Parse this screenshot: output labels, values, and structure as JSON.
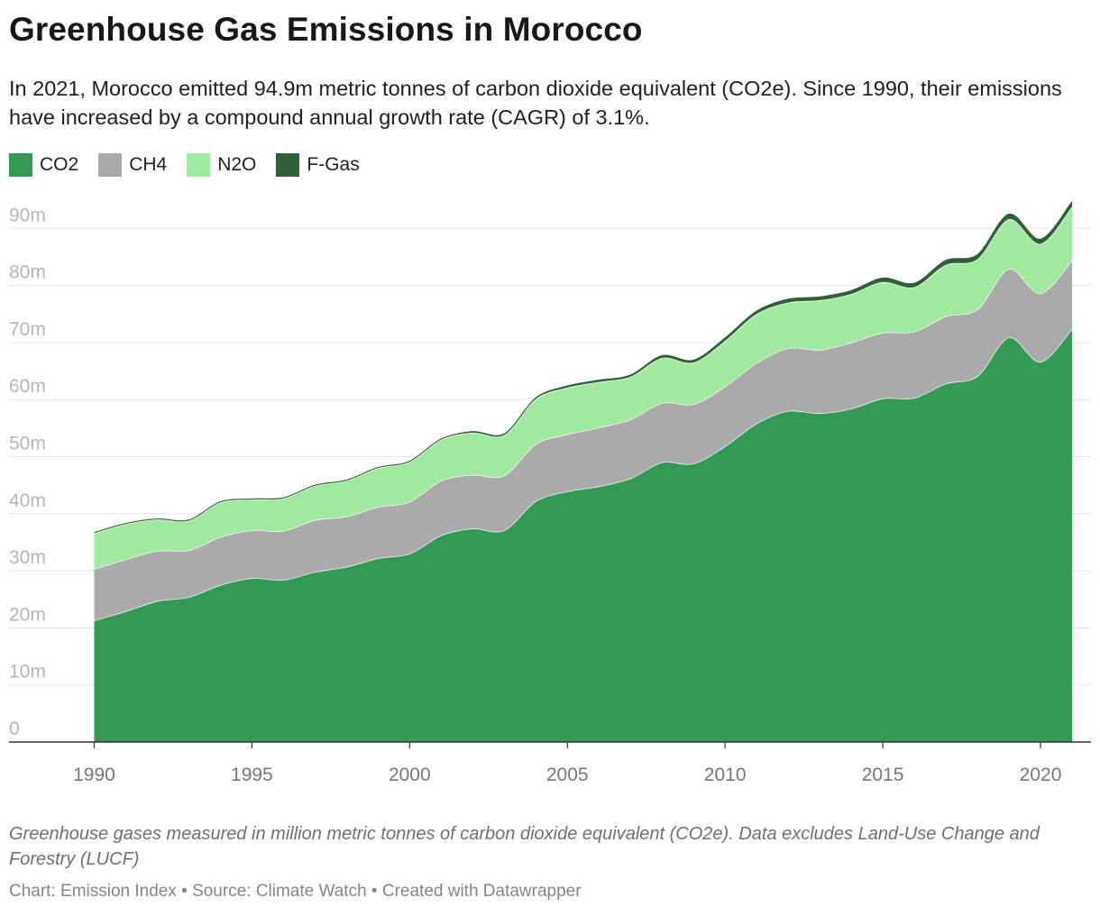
{
  "header": {
    "title": "Greenhouse Gas Emissions in Morocco",
    "subtitle": "In 2021, Morocco emitted 94.9m metric tonnes of carbon dioxide equivalent (CO2e). Since 1990, their emissions have increased by a compound annual growth rate (CAGR) of 3.1%."
  },
  "footer": {
    "notes": "Greenhouse gases measured in million metric tonnes of carbon dioxide equivalent (CO2e). Data excludes Land-Use Change and Forestry (LUCF)",
    "credits": "Chart: Emission Index • Source: Climate Watch • Created with Datawrapper"
  },
  "chart_data": {
    "type": "area",
    "stacked": true,
    "x": [
      1990,
      1991,
      1992,
      1993,
      1994,
      1995,
      1996,
      1997,
      1998,
      1999,
      2000,
      2001,
      2002,
      2003,
      2004,
      2005,
      2006,
      2007,
      2008,
      2009,
      2010,
      2011,
      2012,
      2013,
      2014,
      2015,
      2016,
      2017,
      2018,
      2019,
      2020,
      2021
    ],
    "series": [
      {
        "name": "CO2",
        "color": "#339955",
        "values": [
          21.3,
          22.9,
          24.7,
          25.4,
          27.5,
          28.7,
          28.4,
          29.8,
          30.7,
          32.2,
          33.0,
          36.2,
          37.4,
          37.1,
          42.2,
          43.9,
          44.8,
          46.2,
          49.0,
          48.8,
          51.8,
          55.8,
          58.0,
          57.6,
          58.4,
          60.2,
          60.3,
          62.8,
          64.1,
          70.9,
          66.6,
          72.4
        ],
        "labels_shown": false
      },
      {
        "name": "CH4",
        "color": "#aaaaaa",
        "values": [
          9.0,
          9.1,
          8.8,
          8.2,
          8.4,
          8.4,
          8.6,
          9.1,
          8.8,
          9.0,
          9.1,
          9.6,
          9.4,
          9.6,
          10.0,
          10.0,
          10.3,
          10.3,
          10.4,
          10.4,
          10.5,
          10.6,
          11.0,
          11.1,
          11.6,
          11.5,
          11.6,
          11.8,
          11.7,
          12.0,
          12.0,
          12.0
        ]
      },
      {
        "name": "N2O",
        "color": "#a1e9a1",
        "values": [
          6.3,
          6.2,
          5.5,
          5.2,
          6.1,
          5.4,
          5.7,
          6.0,
          6.3,
          6.8,
          7.0,
          7.2,
          7.4,
          7.1,
          7.9,
          8.2,
          8.0,
          7.5,
          7.9,
          7.3,
          8.0,
          8.6,
          8.0,
          8.7,
          8.5,
          8.9,
          7.8,
          9.0,
          8.8,
          8.7,
          8.7,
          9.4
        ]
      },
      {
        "name": "F-Gas",
        "color": "#325f39",
        "values": [
          0.1,
          0.1,
          0.1,
          0.1,
          0.1,
          0.1,
          0.1,
          0.1,
          0.1,
          0.1,
          0.1,
          0.1,
          0.2,
          0.2,
          0.2,
          0.3,
          0.3,
          0.3,
          0.4,
          0.4,
          0.5,
          0.5,
          0.6,
          0.6,
          0.6,
          0.7,
          0.7,
          0.8,
          0.8,
          0.9,
          0.8,
          0.9
        ]
      }
    ],
    "ylim": [
      0,
      95
    ],
    "y_ticks": [
      0,
      10,
      20,
      30,
      40,
      50,
      60,
      70,
      80,
      90
    ],
    "y_tick_labels": [
      "0",
      "10m",
      "20m",
      "30m",
      "40m",
      "50m",
      "60m",
      "70m",
      "80m",
      "90m"
    ],
    "x_ticks": [
      1990,
      1995,
      2000,
      2005,
      2010,
      2015,
      2020
    ],
    "grid": true,
    "legend_position": "top-left"
  }
}
